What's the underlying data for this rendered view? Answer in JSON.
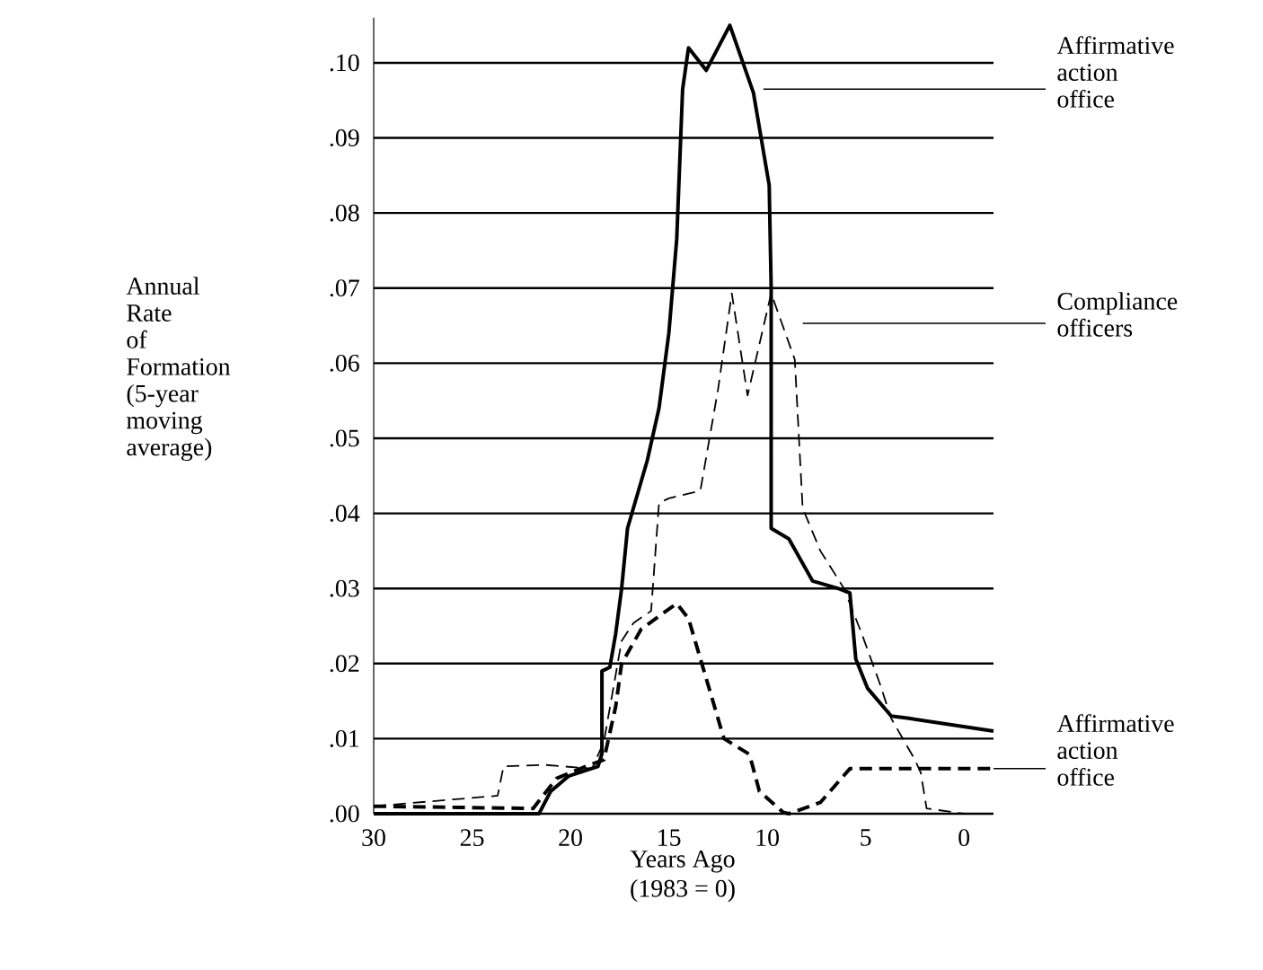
{
  "chart_data": {
    "type": "line",
    "xlabel": "Years Ago",
    "ylabel": "Annual Rate of Formation (5-year moving average)",
    "annotations": [
      "(1983 = 0)"
    ],
    "xlim": [
      30,
      -1.5
    ],
    "xticks": [
      30,
      25,
      20,
      15,
      10,
      5,
      0
    ],
    "ylim": [
      0,
      0.106
    ],
    "yticks": [
      {
        "value": 0,
        "label": ".00"
      },
      {
        "value": 0.01,
        "label": ".01"
      },
      {
        "value": 0.02,
        "label": ".02"
      },
      {
        "value": 0.03,
        "label": ".03"
      },
      {
        "value": 0.04,
        "label": ".04"
      },
      {
        "value": 0.05,
        "label": ".05"
      },
      {
        "value": 0.06,
        "label": ".06"
      },
      {
        "value": 0.07,
        "label": ".07"
      },
      {
        "value": 0.08,
        "label": ".08"
      },
      {
        "value": 0.09,
        "label": ".09"
      },
      {
        "value": 0.1,
        "label": ".10"
      }
    ],
    "grid": "y",
    "marker": "none",
    "series": [
      {
        "name": "Affirmative action office",
        "color": "#000000",
        "line_style": "solid",
        "x": [
          30,
          21.6,
          21.0,
          20.1,
          18.6,
          18.4,
          18.4,
          18.0,
          17.7,
          17.4,
          17.1,
          16.1,
          15.5,
          15.0,
          14.6,
          14.3,
          14.0,
          13.1,
          11.9,
          10.7,
          9.9,
          9.8,
          9.8,
          8.9,
          7.7,
          6.4,
          5.8,
          5.5,
          4.9,
          3.7,
          2.8,
          -1.5
        ],
        "values": [
          0,
          0,
          0.003,
          0.005,
          0.0063,
          0.008,
          0.019,
          0.0195,
          0.024,
          0.03,
          0.038,
          0.047,
          0.054,
          0.064,
          0.0765,
          0.0965,
          0.102,
          0.099,
          0.105,
          0.096,
          0.0837,
          0.07,
          0.038,
          0.0366,
          0.031,
          0.03,
          0.0294,
          0.0206,
          0.0167,
          0.013,
          0.0127,
          0.011
        ]
      },
      {
        "name": "Compliance officers",
        "color": "#000000",
        "line_style": "dashed",
        "x": [
          30,
          23.7,
          23.4,
          21.3,
          18.9,
          18.3,
          17.4,
          16.8,
          15.9,
          15.5,
          15.0,
          13.4,
          12.5,
          11.8,
          11.0,
          9.8,
          8.6,
          8.2,
          7.3,
          6.1,
          5.2,
          4.3,
          3.7,
          2.5,
          2.2,
          1.9,
          0
        ],
        "values": [
          0.001,
          0.0024,
          0.0063,
          0.0065,
          0.006,
          0.0096,
          0.023,
          0.0254,
          0.027,
          0.0414,
          0.042,
          0.043,
          0.0565,
          0.0693,
          0.0557,
          0.0693,
          0.0605,
          0.0407,
          0.035,
          0.03,
          0.024,
          0.0175,
          0.0127,
          0.0072,
          0.0055,
          0.0007,
          0
        ]
      },
      {
        "name": "Affirmative action office",
        "color": "#000000",
        "line_style": "dashed",
        "x": [
          30,
          21.9,
          20.7,
          19.5,
          18.3,
          17.7,
          17.4,
          16.4,
          14.6,
          14.0,
          12.2,
          10.9,
          10.4,
          9.2,
          8.9,
          7.3,
          5.8,
          -1.5
        ],
        "values": [
          0.001,
          0.0007,
          0.0047,
          0.006,
          0.0072,
          0.0143,
          0.02,
          0.0246,
          0.028,
          0.026,
          0.01,
          0.0079,
          0.003,
          0.0002,
          0,
          0.0015,
          0.006,
          0.006
        ]
      }
    ]
  }
}
